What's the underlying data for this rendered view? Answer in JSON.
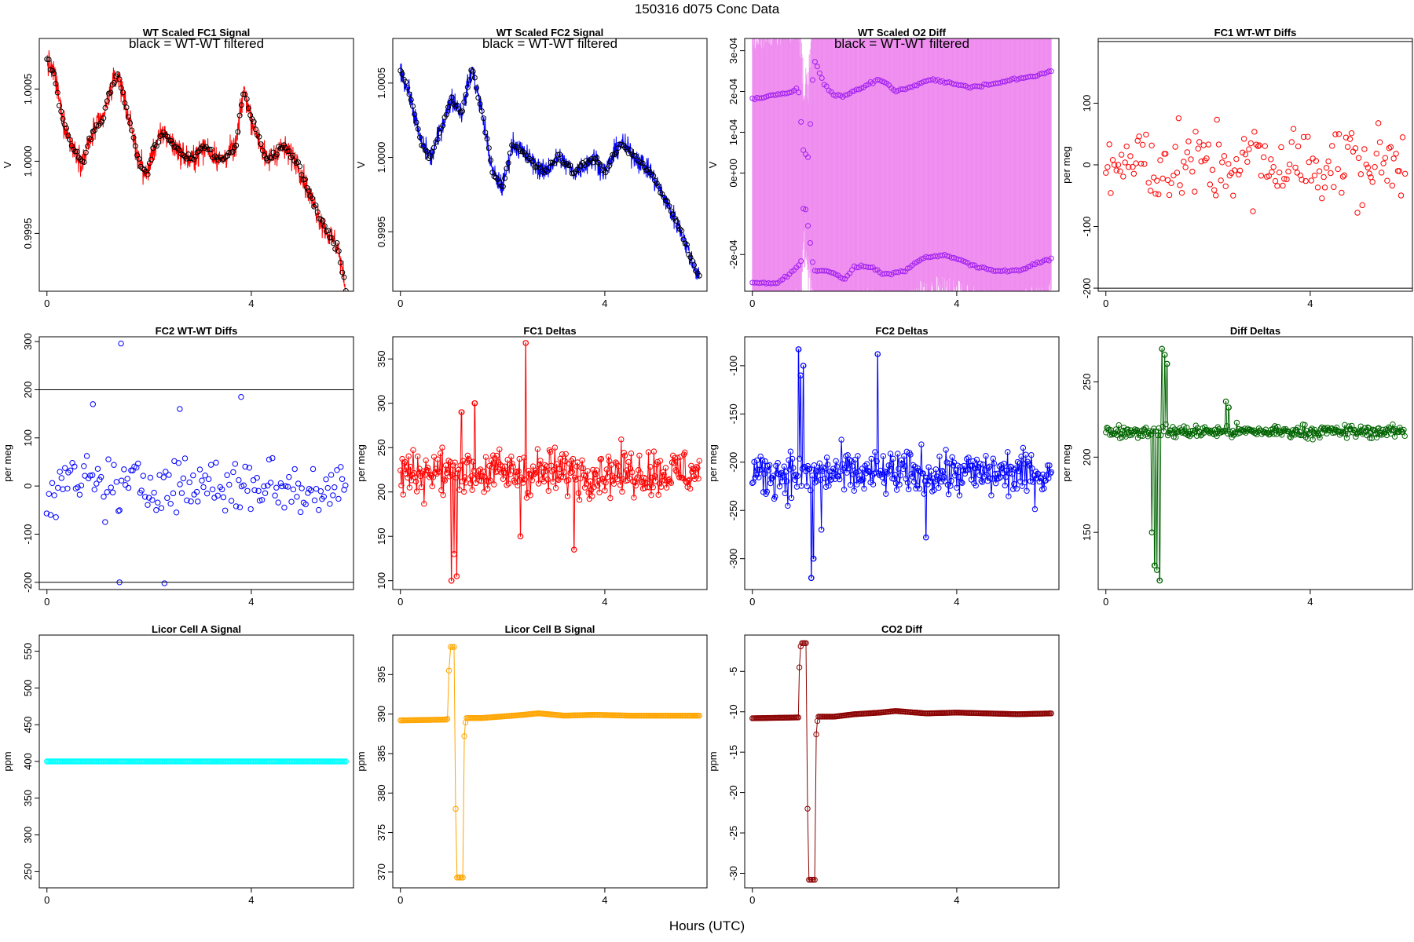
{
  "page": {
    "title": "150316   d075   Conc Data",
    "xlabel": "Hours (UTC)",
    "overlay_note": "black = WT-WT filtered"
  },
  "chart_data": [
    {
      "id": "p1",
      "title": "WT Scaled FC1 Signal",
      "type": "line",
      "ylabel": "V",
      "color": "#ff0000",
      "marker_color": "#000000",
      "style": "dense",
      "xlim": [
        -0.15,
        6.0
      ],
      "ylim": [
        0.9991,
        1.00085
      ],
      "xticks": [
        {
          "v": 0,
          "label": "0"
        },
        {
          "v": 4,
          "label": "4"
        }
      ],
      "yticks": [
        {
          "v": 0.9995,
          "label": "0.9995"
        },
        {
          "v": 1.0,
          "label": "1.0000"
        },
        {
          "v": 1.0005,
          "label": "1.0005"
        }
      ],
      "note": true,
      "x_range": [
        0.0,
        5.85
      ],
      "trend": [
        [
          0.0,
          1.0007
        ],
        [
          0.15,
          1.0006
        ],
        [
          0.3,
          1.0003
        ],
        [
          0.5,
          1.0001
        ],
        [
          0.7,
          1.0
        ],
        [
          0.9,
          1.0002
        ],
        [
          1.1,
          1.0003
        ],
        [
          1.25,
          1.0005
        ],
        [
          1.4,
          1.0006
        ],
        [
          1.6,
          1.0003
        ],
        [
          1.8,
          1.0
        ],
        [
          1.95,
          0.9999
        ],
        [
          2.1,
          1.0001
        ],
        [
          2.3,
          1.0002
        ],
        [
          2.5,
          1.0001
        ],
        [
          2.8,
          1.0
        ],
        [
          3.1,
          1.0001
        ],
        [
          3.4,
          1.0
        ],
        [
          3.7,
          1.0001
        ],
        [
          3.85,
          1.0005
        ],
        [
          4.0,
          1.0003
        ],
        [
          4.3,
          1.0
        ],
        [
          4.6,
          1.0001
        ],
        [
          4.9,
          1.0
        ],
        [
          5.1,
          0.9998
        ],
        [
          5.35,
          0.9996
        ],
        [
          5.5,
          0.9995
        ],
        [
          5.7,
          0.9994
        ],
        [
          5.85,
          0.9991
        ]
      ],
      "noise": 0.00012
    },
    {
      "id": "p2",
      "title": "WT Scaled FC2 Signal",
      "type": "line",
      "ylabel": "V",
      "color": "#0000ff",
      "marker_color": "#000000",
      "style": "dense",
      "xlim": [
        -0.15,
        6.0
      ],
      "ylim": [
        0.9991,
        1.0008
      ],
      "xticks": [
        {
          "v": 0,
          "label": "0"
        },
        {
          "v": 4,
          "label": "4"
        }
      ],
      "yticks": [
        {
          "v": 0.9995,
          "label": "0.9995"
        },
        {
          "v": 1.0,
          "label": "1.0000"
        },
        {
          "v": 1.0005,
          "label": "1.0005"
        }
      ],
      "note": true,
      "x_range": [
        0.0,
        5.85
      ],
      "trend": [
        [
          0.0,
          1.0006
        ],
        [
          0.2,
          1.0004
        ],
        [
          0.4,
          1.0001
        ],
        [
          0.6,
          1.0
        ],
        [
          0.8,
          1.0002
        ],
        [
          1.0,
          1.0004
        ],
        [
          1.2,
          1.0003
        ],
        [
          1.4,
          1.0006
        ],
        [
          1.6,
          1.0003
        ],
        [
          1.8,
          0.9999
        ],
        [
          2.0,
          0.9998
        ],
        [
          2.2,
          1.0001
        ],
        [
          2.5,
          1.0
        ],
        [
          2.8,
          0.9999
        ],
        [
          3.1,
          1.0
        ],
        [
          3.4,
          0.9999
        ],
        [
          3.8,
          1.0
        ],
        [
          4.0,
          0.9999
        ],
        [
          4.3,
          1.0001
        ],
        [
          4.6,
          1.0
        ],
        [
          4.9,
          0.9999
        ],
        [
          5.2,
          0.9997
        ],
        [
          5.5,
          0.9995
        ],
        [
          5.7,
          0.9993
        ],
        [
          5.85,
          0.9992
        ]
      ],
      "noise": 0.0001
    },
    {
      "id": "p3",
      "title": "WT Scaled O2 Diff",
      "type": "line",
      "ylabel": "V",
      "color": "#ee82ee",
      "marker_color": "#a020f0",
      "style": "o2",
      "xlim": [
        -0.15,
        6.0
      ],
      "ylim": [
        -0.00029,
        0.00033
      ],
      "xticks": [
        {
          "v": 0,
          "label": "0"
        },
        {
          "v": 4,
          "label": "4"
        }
      ],
      "yticks": [
        {
          "v": -0.0002,
          "label": "-2e-04"
        },
        {
          "v": 0,
          "label": "0e+00"
        },
        {
          "v": 0.0001,
          "label": "1e-04"
        },
        {
          "v": 0.0002,
          "label": "2e-04"
        },
        {
          "v": 0.0003,
          "label": "3e-04"
        }
      ],
      "note": true,
      "x_range": [
        0.0,
        5.85
      ],
      "upper": [
        [
          0.0,
          0.00018
        ],
        [
          0.8,
          0.0002
        ],
        [
          0.9,
          0.00021
        ],
        [
          1.0,
          5e-05
        ],
        [
          1.1,
          4e-05
        ],
        [
          1.2,
          0.00028
        ],
        [
          1.4,
          0.00022
        ],
        [
          1.6,
          0.00019
        ],
        [
          1.8,
          0.00019
        ],
        [
          2.0,
          0.0002
        ],
        [
          2.3,
          0.00022
        ],
        [
          2.5,
          0.00023
        ],
        [
          2.8,
          0.0002
        ],
        [
          3.1,
          0.00021
        ],
        [
          3.5,
          0.00023
        ],
        [
          3.9,
          0.00022
        ],
        [
          4.3,
          0.00021
        ],
        [
          4.7,
          0.00022
        ],
        [
          5.2,
          0.00023
        ],
        [
          5.6,
          0.00024
        ],
        [
          5.85,
          0.00025
        ]
      ],
      "lower": [
        [
          0.0,
          -0.00027
        ],
        [
          0.5,
          -0.00027
        ],
        [
          0.8,
          -0.00024
        ],
        [
          0.95,
          -0.00022
        ],
        [
          1.0,
          -8e-05
        ],
        [
          1.05,
          -9e-05
        ],
        [
          1.2,
          -0.00024
        ],
        [
          1.5,
          -0.00024
        ],
        [
          1.8,
          -0.00026
        ],
        [
          2.0,
          -0.00023
        ],
        [
          2.3,
          -0.00023
        ],
        [
          2.6,
          -0.00025
        ],
        [
          3.0,
          -0.00024
        ],
        [
          3.3,
          -0.00021
        ],
        [
          3.7,
          -0.0002
        ],
        [
          4.0,
          -0.00021
        ],
        [
          4.4,
          -0.00023
        ],
        [
          4.8,
          -0.00024
        ],
        [
          5.2,
          -0.00024
        ],
        [
          5.6,
          -0.00022
        ],
        [
          5.85,
          -0.00021
        ]
      ]
    },
    {
      "id": "p4",
      "title": "FC1 WT-WT Diffs",
      "type": "scatter",
      "ylabel": "per meg",
      "color": "#ff0000",
      "style": "scatter",
      "xlim": [
        -0.15,
        6.0
      ],
      "ylim": [
        -205,
        205
      ],
      "xticks": [
        {
          "v": 0,
          "label": "0"
        },
        {
          "v": 4,
          "label": "4"
        }
      ],
      "yticks": [
        {
          "v": -200,
          "label": "-200"
        },
        {
          "v": -100,
          "label": "-100"
        },
        {
          "v": 0,
          "label": "0"
        },
        {
          "v": 100,
          "label": "100"
        }
      ],
      "hlines": [
        -200,
        200
      ],
      "x_range": [
        0.0,
        5.85
      ],
      "n": 170,
      "spread": 70
    },
    {
      "id": "p5",
      "title": "FC2 WT-WT Diffs",
      "type": "scatter",
      "ylabel": "per meg",
      "color": "#0000ff",
      "style": "scatter",
      "xlim": [
        -0.15,
        6.0
      ],
      "ylim": [
        -215,
        310
      ],
      "xticks": [
        {
          "v": 0,
          "label": "0"
        },
        {
          "v": 4,
          "label": "4"
        }
      ],
      "yticks": [
        {
          "v": -200,
          "label": "-200"
        },
        {
          "v": -100,
          "label": "-100"
        },
        {
          "v": 0,
          "label": "0"
        },
        {
          "v": 100,
          "label": "100"
        },
        {
          "v": 200,
          "label": "200"
        },
        {
          "v": 300,
          "label": "300"
        }
      ],
      "hlines": [
        -200,
        200
      ],
      "x_range": [
        0.0,
        5.85
      ],
      "n": 165,
      "spread": 65,
      "outliers": [
        [
          1.45,
          296
        ],
        [
          0.9,
          170
        ],
        [
          3.8,
          185
        ],
        [
          1.42,
          -200
        ],
        [
          2.3,
          -202
        ],
        [
          2.6,
          160
        ]
      ]
    },
    {
      "id": "p6",
      "title": "FC1 Deltas",
      "type": "line",
      "ylabel": "per meg",
      "color": "#ff0000",
      "style": "deltas",
      "xlim": [
        -0.15,
        6.0
      ],
      "ylim": [
        90,
        375
      ],
      "xticks": [
        {
          "v": 0,
          "label": "0"
        },
        {
          "v": 4,
          "label": "4"
        }
      ],
      "yticks": [
        {
          "v": 100,
          "label": "100"
        },
        {
          "v": 150,
          "label": "150"
        },
        {
          "v": 200,
          "label": "200"
        },
        {
          "v": 250,
          "label": "250"
        },
        {
          "v": 300,
          "label": "300"
        },
        {
          "v": 350,
          "label": "350"
        }
      ],
      "x_range": [
        0.0,
        5.85
      ],
      "base": 222,
      "spread": 22,
      "spikes": [
        [
          1.0,
          100
        ],
        [
          1.05,
          130
        ],
        [
          1.1,
          105
        ],
        [
          1.2,
          290
        ],
        [
          2.45,
          368
        ],
        [
          2.35,
          150
        ],
        [
          3.4,
          135
        ],
        [
          1.45,
          300
        ]
      ]
    },
    {
      "id": "p7",
      "title": "FC2 Deltas",
      "type": "line",
      "ylabel": "per meg",
      "color": "#0000ff",
      "style": "deltas",
      "xlim": [
        -0.15,
        6.0
      ],
      "ylim": [
        -332,
        -70
      ],
      "xticks": [
        {
          "v": 0,
          "label": "0"
        },
        {
          "v": 4,
          "label": "4"
        }
      ],
      "yticks": [
        {
          "v": -300,
          "label": "-300"
        },
        {
          "v": -250,
          "label": "-250"
        },
        {
          "v": -200,
          "label": "-200"
        },
        {
          "v": -150,
          "label": "-150"
        },
        {
          "v": -100,
          "label": "-100"
        }
      ],
      "x_range": [
        0.0,
        5.85
      ],
      "base": -212,
      "spread": 20,
      "spikes": [
        [
          0.9,
          -83
        ],
        [
          0.95,
          -110
        ],
        [
          1.0,
          -100
        ],
        [
          1.15,
          -320
        ],
        [
          1.2,
          -300
        ],
        [
          2.45,
          -88
        ],
        [
          1.35,
          -270
        ],
        [
          3.4,
          -278
        ]
      ]
    },
    {
      "id": "p8",
      "title": "Diff Deltas",
      "type": "line",
      "ylabel": "per meg",
      "color": "#006400",
      "style": "diffdeltas",
      "xlim": [
        -0.15,
        6.0
      ],
      "ylim": [
        112,
        280
      ],
      "xticks": [
        {
          "v": 0,
          "label": "0"
        },
        {
          "v": 4,
          "label": "4"
        }
      ],
      "yticks": [
        {
          "v": 150,
          "label": "150"
        },
        {
          "v": 200,
          "label": "200"
        },
        {
          "v": 250,
          "label": "250"
        }
      ],
      "x_range": [
        0.0,
        5.85
      ],
      "base": 217,
      "spread": 4,
      "spikes": [
        [
          0.9,
          150
        ],
        [
          0.95,
          128
        ],
        [
          1.0,
          125
        ],
        [
          1.05,
          118
        ],
        [
          1.1,
          272
        ],
        [
          1.15,
          268
        ],
        [
          1.2,
          262
        ],
        [
          2.35,
          237
        ],
        [
          2.4,
          233
        ]
      ]
    },
    {
      "id": "p9",
      "title": "Licor Cell A Signal",
      "type": "line",
      "ylabel": "ppm",
      "color": "#00ffff",
      "style": "flat",
      "xlim": [
        -0.15,
        6.0
      ],
      "ylim": [
        228,
        572
      ],
      "xticks": [
        {
          "v": 0,
          "label": "0"
        },
        {
          "v": 4,
          "label": "4"
        }
      ],
      "yticks": [
        {
          "v": 250,
          "label": "250"
        },
        {
          "v": 300,
          "label": "300"
        },
        {
          "v": 350,
          "label": "350"
        },
        {
          "v": 400,
          "label": "400"
        },
        {
          "v": 450,
          "label": "450"
        },
        {
          "v": 500,
          "label": "500"
        },
        {
          "v": 550,
          "label": "550"
        }
      ],
      "x_range": [
        0.0,
        5.85
      ],
      "value": 400
    },
    {
      "id": "p10",
      "title": "Licor Cell B Signal",
      "type": "line",
      "ylabel": "ppm",
      "color": "#ffa500",
      "style": "step",
      "xlim": [
        -0.15,
        6.0
      ],
      "ylim": [
        368,
        400
      ],
      "xticks": [
        {
          "v": 0,
          "label": "0"
        },
        {
          "v": 4,
          "label": "4"
        }
      ],
      "yticks": [
        {
          "v": 370,
          "label": "370"
        },
        {
          "v": 375,
          "label": "375"
        },
        {
          "v": 380,
          "label": "380"
        },
        {
          "v": 385,
          "label": "385"
        },
        {
          "v": 390,
          "label": "390"
        },
        {
          "v": 395,
          "label": "395"
        }
      ],
      "x_range": [
        0.0,
        5.85
      ],
      "segments": [
        [
          [
            0.0,
            389.2
          ],
          [
            0.9,
            389.3
          ],
          [
            0.92,
            389.4
          ]
        ],
        [
          [
            0.95,
            395.5
          ],
          [
            0.97,
            398.5
          ],
          [
            1.05,
            398.5
          ]
        ],
        [
          [
            1.08,
            378.0
          ],
          [
            1.1,
            369.3
          ],
          [
            1.22,
            369.3
          ]
        ],
        [
          [
            1.25,
            387.2
          ],
          [
            1.28,
            389.5
          ],
          [
            1.6,
            389.5
          ],
          [
            2.0,
            389.7
          ],
          [
            2.4,
            389.9
          ],
          [
            2.7,
            390.1
          ],
          [
            3.2,
            389.8
          ],
          [
            3.8,
            389.9
          ],
          [
            4.5,
            389.8
          ],
          [
            5.2,
            389.8
          ],
          [
            5.85,
            389.8
          ]
        ]
      ]
    },
    {
      "id": "p11",
      "title": "CO2 Diff",
      "type": "line",
      "ylabel": "ppm",
      "color": "#8b0000",
      "style": "step",
      "xlim": [
        -0.15,
        6.0
      ],
      "ylim": [
        -31.8,
        -0.5
      ],
      "xticks": [
        {
          "v": 0,
          "label": "0"
        },
        {
          "v": 4,
          "label": "4"
        }
      ],
      "yticks": [
        {
          "v": -30,
          "label": "-30"
        },
        {
          "v": -25,
          "label": "-25"
        },
        {
          "v": -20,
          "label": "-20"
        },
        {
          "v": -15,
          "label": "-15"
        },
        {
          "v": -10,
          "label": "-10"
        },
        {
          "v": -5,
          "label": "-5"
        }
      ],
      "x_range": [
        0.0,
        5.85
      ],
      "segments": [
        [
          [
            0.0,
            -10.8
          ],
          [
            0.9,
            -10.7
          ]
        ],
        [
          [
            0.92,
            -4.5
          ],
          [
            0.95,
            -1.5
          ],
          [
            1.05,
            -1.5
          ]
        ],
        [
          [
            1.08,
            -22.0
          ],
          [
            1.1,
            -30.8
          ],
          [
            1.22,
            -30.8
          ]
        ],
        [
          [
            1.25,
            -12.8
          ],
          [
            1.28,
            -10.6
          ],
          [
            1.6,
            -10.6
          ],
          [
            2.0,
            -10.3
          ],
          [
            2.5,
            -10.1
          ],
          [
            2.8,
            -9.9
          ],
          [
            3.4,
            -10.2
          ],
          [
            4.0,
            -10.1
          ],
          [
            4.6,
            -10.2
          ],
          [
            5.2,
            -10.3
          ],
          [
            5.85,
            -10.2
          ]
        ]
      ]
    }
  ]
}
